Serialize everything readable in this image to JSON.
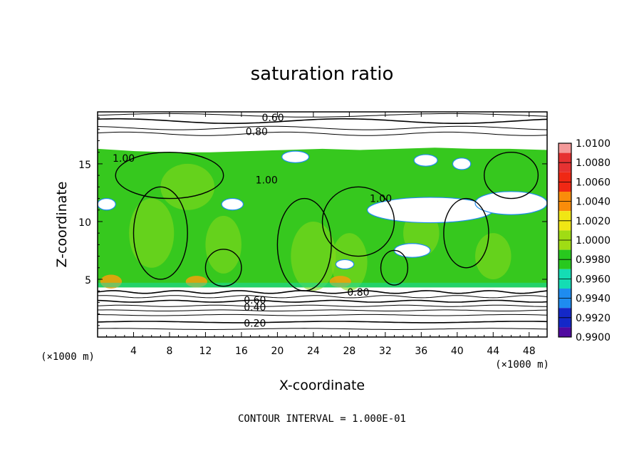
{
  "chart_data": {
    "type": "heatmap",
    "title": "saturation ratio",
    "xlabel": "X-coordinate",
    "ylabel": "Z-coordinate",
    "x_unit": "(×1000 m)",
    "y_unit": "(×1000 m)",
    "x_ticks": [
      4,
      8,
      12,
      16,
      20,
      24,
      28,
      32,
      36,
      40,
      44,
      48
    ],
    "y_ticks": [
      5,
      10,
      15
    ],
    "xlim": [
      0,
      50
    ],
    "ylim": [
      0,
      19.5
    ],
    "colorbar": {
      "levels": [
        "1.0100",
        "1.0080",
        "1.0060",
        "1.0040",
        "1.0020",
        "1.0000",
        "0.9980",
        "0.9960",
        "0.9940",
        "0.9920",
        "0.9900"
      ],
      "colors": [
        "#f49a9a",
        "#e63232",
        "#f02814",
        "#fa8c0a",
        "#f0e614",
        "#a0dc14",
        "#28c81e",
        "#14dcb4",
        "#1e8cf0",
        "#1428c8",
        "#500aa0"
      ]
    },
    "contour_labels": [
      {
        "text": "0.60",
        "x": 19.5,
        "z": 19.0
      },
      {
        "text": "0.80",
        "x": 17.7,
        "z": 17.8
      },
      {
        "text": "1.00",
        "x": 2.9,
        "z": 15.5
      },
      {
        "text": "1.00",
        "x": 18.8,
        "z": 13.6
      },
      {
        "text": "1.00",
        "x": 31.5,
        "z": 12.0
      },
      {
        "text": "0.80",
        "x": 29.0,
        "z": 3.9
      },
      {
        "text": "0.60",
        "x": 17.5,
        "z": 3.2
      },
      {
        "text": "0.40",
        "x": 17.5,
        "z": 2.6
      },
      {
        "text": "0.20",
        "x": 17.5,
        "z": 1.2
      }
    ],
    "contour_interval": "CONTOUR INTERVAL = 1.000E-01"
  }
}
